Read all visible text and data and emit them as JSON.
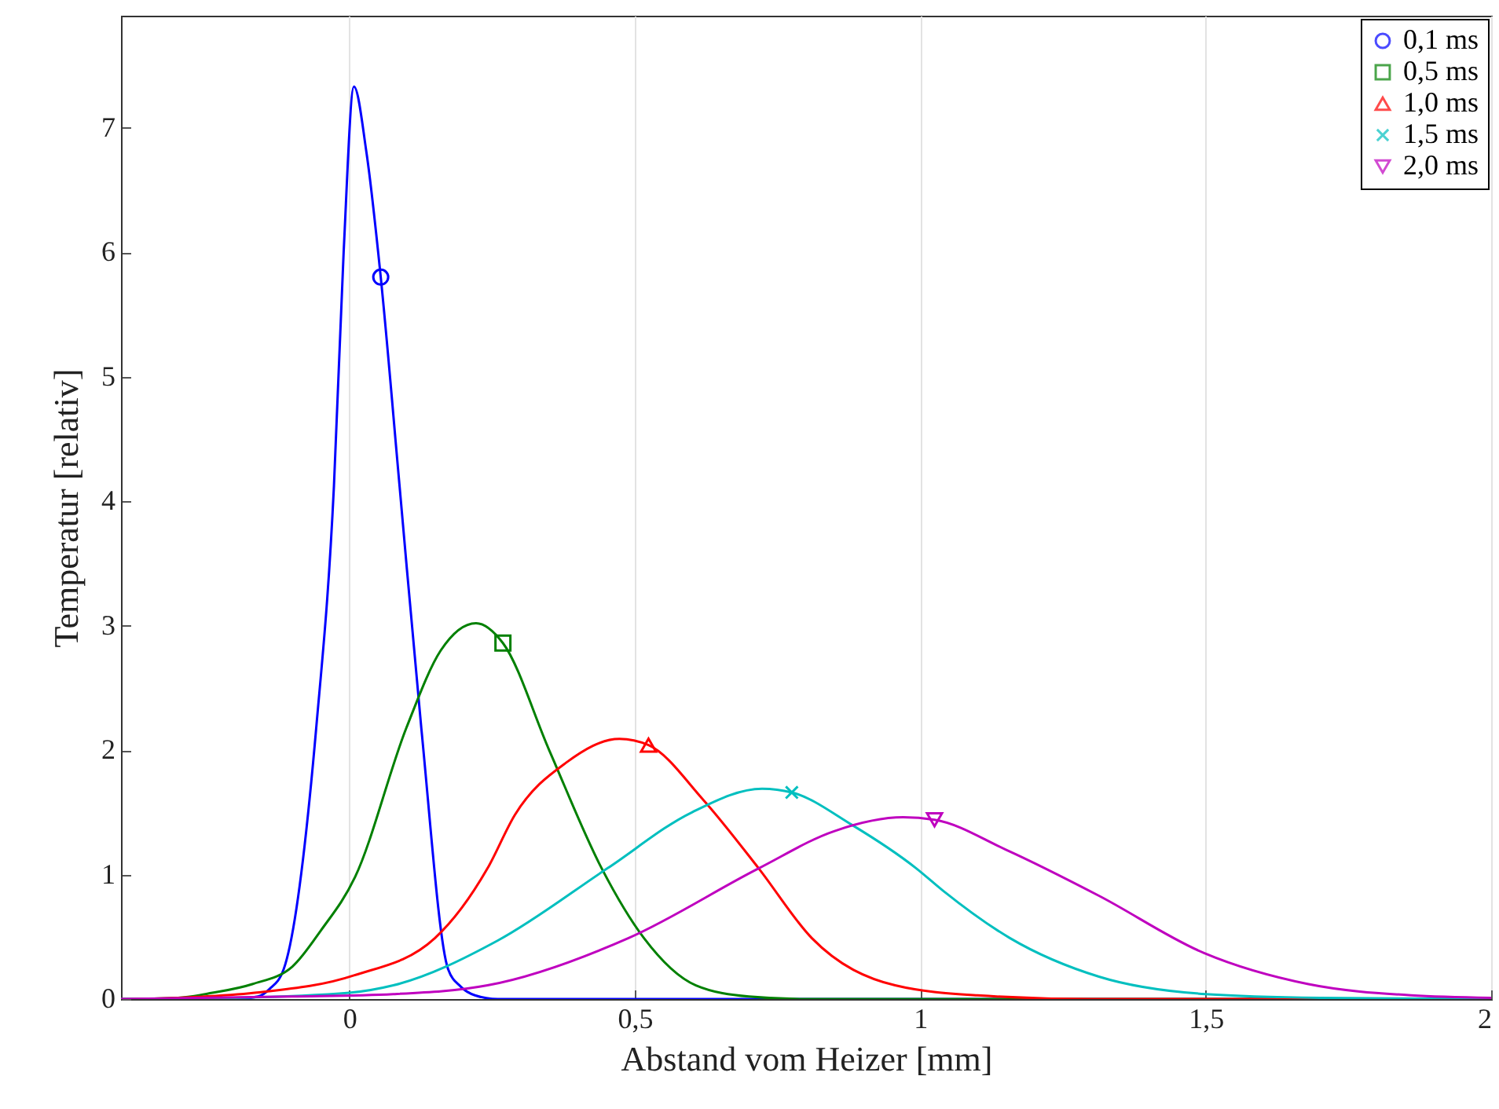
{
  "chart_data": {
    "type": "line",
    "xlabel": "Abstand vom Heizer [mm]",
    "ylabel": "Temperatur [relativ]",
    "xlim": [
      -0.4,
      2
    ],
    "ylim": [
      0,
      7.9
    ],
    "xticks": [
      0,
      {
        "value": 0.5,
        "label": "0,5"
      },
      1,
      {
        "value": 1.5,
        "label": "1,5"
      },
      2
    ],
    "yticks": [
      0,
      1,
      2,
      3,
      4,
      5,
      6,
      7
    ],
    "grid": "x",
    "legend": "top right",
    "line_style": "solid",
    "series": [
      {
        "name": "0,1 ms",
        "color": "#0000ff",
        "x": [
          -0.4,
          -0.2,
          -0.16,
          -0.14,
          -0.115,
          -0.058,
          -0.027,
          -0.01,
          0.008,
          0.03,
          0.055,
          0.088,
          0.126,
          0.173,
          0.195,
          0.22,
          0.26,
          2
        ],
        "values": [
          0,
          0,
          0.02,
          0.08,
          0.24,
          2.18,
          4.12,
          6.0,
          7.33,
          6.8,
          5.8,
          4.12,
          2.18,
          0.24,
          0.1,
          0.03,
          0,
          0
        ]
      },
      {
        "name": "0,5 ms",
        "color": "#008000",
        "x": [
          -0.4,
          -0.3,
          -0.24,
          -0.17,
          -0.1,
          -0.05,
          0.01,
          0.1,
          0.16,
          0.222,
          0.269,
          0.35,
          0.442,
          0.516,
          0.607,
          0.7,
          0.8,
          2
        ],
        "values": [
          0,
          0.01,
          0.05,
          0.12,
          0.26,
          0.55,
          0.98,
          2.18,
          2.8,
          3.02,
          2.86,
          2.0,
          1.05,
          0.49,
          0.11,
          0.02,
          0,
          0
        ]
      },
      {
        "name": "1,0 ms",
        "color": "#ff0000",
        "x": [
          -0.4,
          -0.3,
          -0.166,
          0.008,
          0.15,
          0.242,
          0.29,
          0.38,
          0.473,
          0.524,
          0.62,
          0.717,
          0.81,
          0.956,
          1.1,
          1.3,
          2
        ],
        "values": [
          0,
          0.01,
          0.05,
          0.19,
          0.49,
          1.05,
          1.48,
          1.9,
          2.09,
          2.04,
          1.6,
          1.05,
          0.49,
          0.11,
          0.03,
          0,
          0
        ]
      },
      {
        "name": "1,5 ms",
        "color": "#00bfbf",
        "x": [
          -0.4,
          -0.2,
          0,
          0.077,
          0.26,
          0.452,
          0.6,
          0.723,
          0.775,
          0.88,
          0.993,
          1.04,
          1.157,
          1.313,
          1.5,
          1.7,
          2
        ],
        "values": [
          0,
          0.01,
          0.05,
          0.11,
          0.47,
          1.05,
          1.5,
          1.69,
          1.66,
          1.4,
          1.05,
          0.87,
          0.49,
          0.18,
          0.04,
          0.01,
          0
        ]
      },
      {
        "name": "2,0 ms",
        "color": "#bf00bf",
        "x": [
          -0.4,
          -0.1,
          0.077,
          0.242,
          0.489,
          0.717,
          0.85,
          0.97,
          1.025,
          1.15,
          1.313,
          1.497,
          1.68,
          1.86,
          2
        ],
        "values": [
          0,
          0.02,
          0.04,
          0.11,
          0.49,
          1.05,
          1.35,
          1.46,
          1.44,
          1.2,
          0.83,
          0.37,
          0.12,
          0.03,
          0.01
        ]
      },
      {
        "type": "scatter",
        "color": "#0000ff",
        "marker": "circle",
        "x": [
          0.055
        ],
        "values": [
          5.8
        ]
      },
      {
        "type": "scatter",
        "color": "#008000",
        "marker": "square",
        "x": [
          0.269
        ],
        "values": [
          2.86
        ]
      },
      {
        "type": "scatter",
        "color": "#ff0000",
        "marker": "triangle",
        "x": [
          0.524
        ],
        "values": [
          2.04
        ]
      },
      {
        "type": "scatter",
        "color": "#00bfbf",
        "marker": "cross",
        "x": [
          0.775
        ],
        "values": [
          1.66
        ]
      },
      {
        "type": "scatter",
        "color": "#bf00bf",
        "marker": "triangle-down",
        "x": [
          1.025
        ],
        "values": [
          1.44
        ]
      }
    ]
  }
}
